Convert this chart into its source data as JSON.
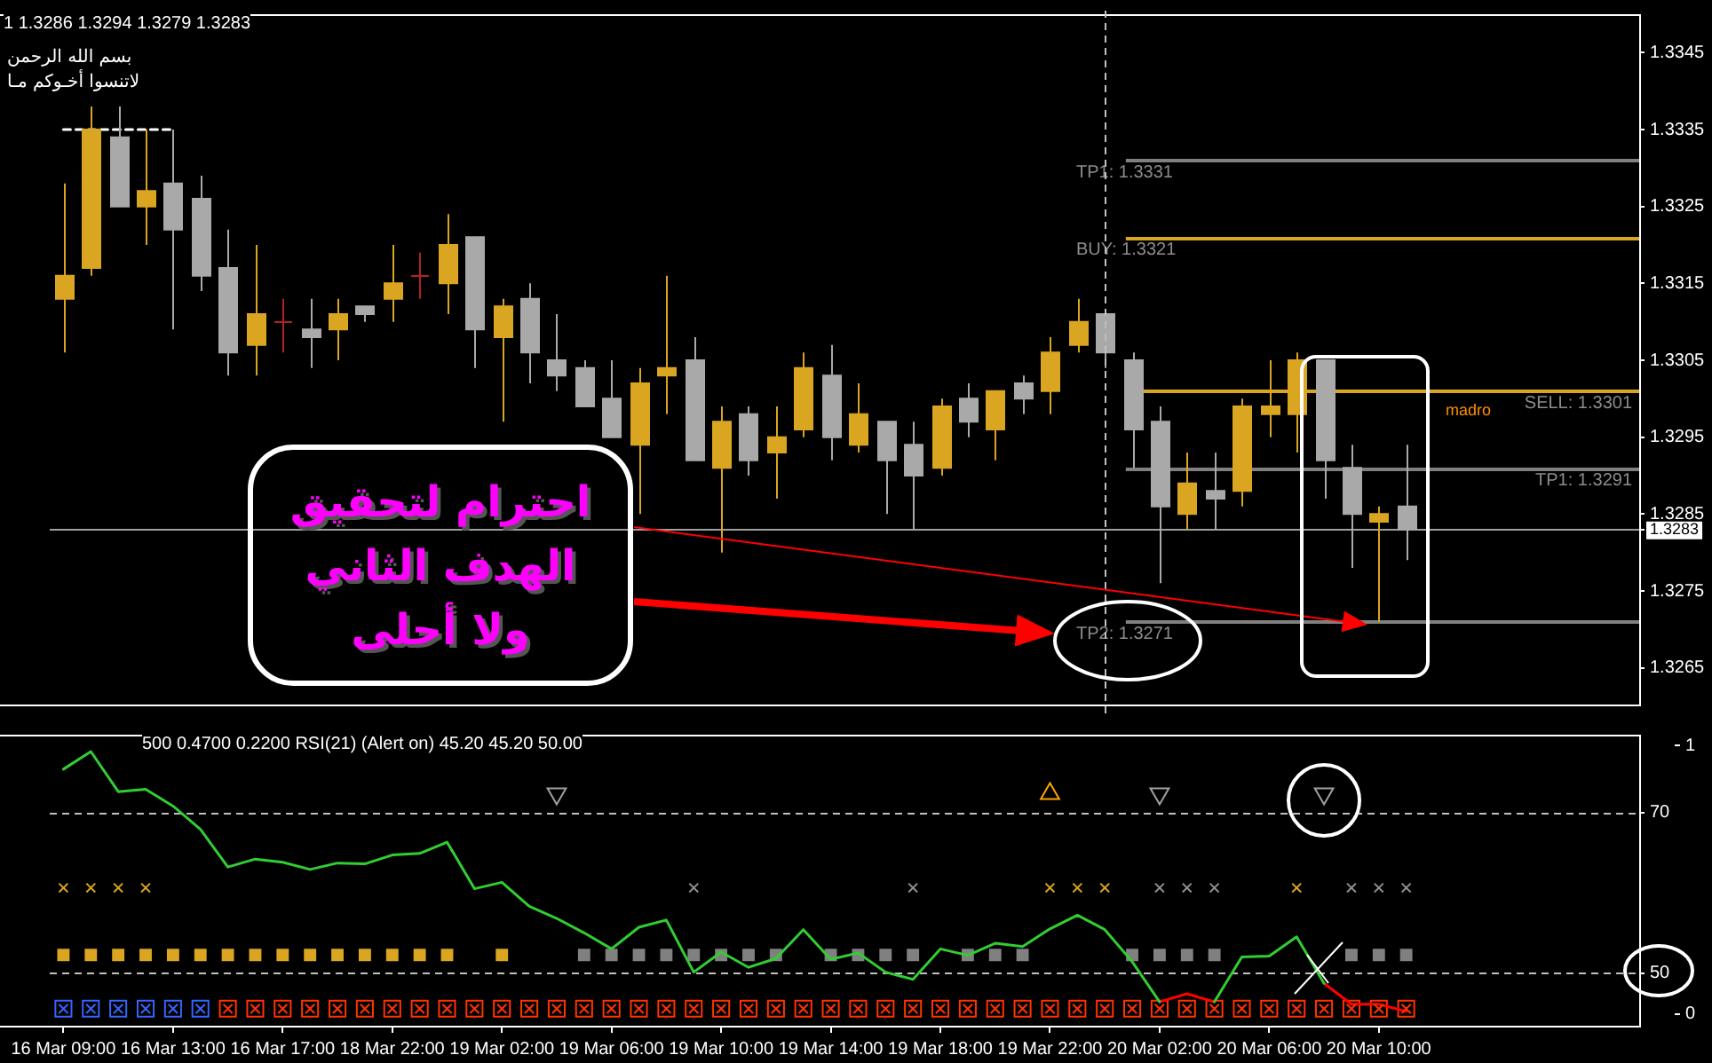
{
  "chart_data": [
    {
      "type": "candlestick",
      "categories": [
        "16 Mar 09:00",
        null,
        null,
        null,
        "16 Mar 13:00",
        null,
        null,
        null,
        "16 Mar 17:00",
        null,
        null,
        null,
        "18 Mar 22:00",
        null,
        null,
        null,
        "19 Mar 02:00",
        null,
        null,
        null,
        "19 Mar 06:00",
        null,
        null,
        null,
        "19 Mar 10:00",
        null,
        null,
        null,
        "19 Mar 14:00",
        null,
        null,
        null,
        "19 Mar 18:00",
        null,
        null,
        null,
        "19 Mar 22:00",
        null,
        null,
        null,
        "20 Mar 02:00",
        null,
        null,
        null,
        "20 Mar 06:00",
        null,
        null,
        null,
        "20 Mar 10:00",
        null,
        null,
        null,
        null,
        null,
        null,
        null,
        null,
        null
      ],
      "ohlc": [
        [
          1.3313,
          1.3328,
          1.3306,
          1.3316
        ],
        [
          1.3317,
          1.3338,
          1.3316,
          1.3335
        ],
        [
          1.3334,
          1.3338,
          1.3325,
          1.3325
        ],
        [
          1.3325,
          1.3335,
          1.332,
          1.3327
        ],
        [
          1.3328,
          1.3335,
          1.3309,
          1.3322
        ],
        [
          1.3326,
          1.3329,
          1.3314,
          1.3316
        ],
        [
          1.3317,
          1.3322,
          1.3303,
          1.3306
        ],
        [
          1.3307,
          1.332,
          1.3303,
          1.3311
        ],
        [
          1.331,
          1.3313,
          1.3306,
          1.331
        ],
        [
          1.3309,
          1.3313,
          1.3304,
          1.3308
        ],
        [
          1.3309,
          1.3313,
          1.3305,
          1.3311
        ],
        [
          1.3312,
          1.3312,
          1.331,
          1.3311
        ],
        [
          1.3313,
          1.332,
          1.331,
          1.3315
        ],
        [
          1.3316,
          1.3319,
          1.3313,
          1.3316
        ],
        [
          1.3315,
          1.3324,
          1.3311,
          1.332
        ],
        [
          1.3321,
          1.3321,
          1.3304,
          1.3309
        ],
        [
          1.3308,
          1.3313,
          1.3297,
          1.3312
        ],
        [
          1.3313,
          1.3315,
          1.3302,
          1.3306
        ],
        [
          1.3305,
          1.3311,
          1.3301,
          1.3303
        ],
        [
          1.3304,
          1.3305,
          1.3299,
          1.3299
        ],
        [
          1.33,
          1.3305,
          1.3295,
          1.3295
        ],
        [
          1.3294,
          1.3304,
          1.3285,
          1.3302
        ],
        [
          1.3303,
          1.3316,
          1.3298,
          1.3304
        ],
        [
          1.3305,
          1.3308,
          1.3292,
          1.3292
        ],
        [
          1.3291,
          1.3299,
          1.328,
          1.3297
        ],
        [
          1.3298,
          1.3299,
          1.329,
          1.3292
        ],
        [
          1.3293,
          1.3299,
          1.3287,
          1.3295
        ],
        [
          1.3296,
          1.3306,
          1.3295,
          1.3304
        ],
        [
          1.3303,
          1.3307,
          1.3292,
          1.3295
        ],
        [
          1.3294,
          1.3302,
          1.3293,
          1.3298
        ],
        [
          1.3297,
          1.3297,
          1.3285,
          1.3292
        ],
        [
          1.3294,
          1.3297,
          1.3283,
          1.329
        ],
        [
          1.3291,
          1.33,
          1.329,
          1.3299
        ],
        [
          1.33,
          1.3302,
          1.3295,
          1.3297
        ],
        [
          1.3296,
          1.3301,
          1.3292,
          1.3301
        ],
        [
          1.3302,
          1.3303,
          1.3298,
          1.33
        ],
        [
          1.3301,
          1.3308,
          1.3298,
          1.3306
        ],
        [
          1.3307,
          1.3313,
          1.3306,
          1.331
        ],
        [
          1.3311,
          1.3311,
          1.3304,
          1.3306
        ],
        [
          1.3305,
          1.3306,
          1.3291,
          1.3296
        ],
        [
          1.3297,
          1.3299,
          1.3276,
          1.3286
        ],
        [
          1.3285,
          1.3293,
          1.3283,
          1.3289
        ],
        [
          1.3288,
          1.3293,
          1.3283,
          1.3287
        ],
        [
          1.3288,
          1.33,
          1.3286,
          1.3299
        ],
        [
          1.3298,
          1.3305,
          1.3295,
          1.3299
        ],
        [
          1.3298,
          1.3306,
          1.3293,
          1.3305
        ],
        [
          1.3305,
          1.3305,
          1.3287,
          1.3292
        ],
        [
          1.3291,
          1.3294,
          1.3278,
          1.3285
        ],
        [
          1.3284,
          1.3286,
          1.3271,
          1.3285
        ],
        [
          1.3286,
          1.3294,
          1.3279,
          1.3283
        ],
        null,
        null,
        null,
        null,
        null,
        null,
        null,
        null
      ],
      "colors": [
        "#daa520",
        "#daa520",
        "#a9a9a9",
        "#daa520",
        "#a9a9a9",
        "#a9a9a9",
        "#a9a9a9",
        "#daa520",
        "#b22222",
        "#a9a9a9",
        "#daa520",
        "#a9a9a9",
        "#daa520",
        "#b22222",
        "#daa520",
        "#a9a9a9",
        "#daa520",
        "#a9a9a9",
        "#a9a9a9",
        "#a9a9a9",
        "#a9a9a9",
        "#daa520",
        "#daa520",
        "#a9a9a9",
        "#daa520",
        "#a9a9a9",
        "#daa520",
        "#daa520",
        "#a9a9a9",
        "#daa520",
        "#a9a9a9",
        "#a9a9a9",
        "#daa520",
        "#a9a9a9",
        "#daa520",
        "#a9a9a9",
        "#daa520",
        "#daa520",
        "#a9a9a9",
        "#a9a9a9",
        "#a9a9a9",
        "#daa520",
        "#a9a9a9",
        "#daa520",
        "#daa520",
        "#daa520",
        "#a9a9a9",
        "#a9a9a9",
        "#daa520",
        "#a9a9a9",
        null,
        null,
        null,
        null,
        null,
        null,
        null,
        null
      ],
      "series": [
        {
          "type": "line",
          "values": [
            1.3335,
            1.3335,
            1.3335,
            1.3335,
            1.3335,
            null,
            null,
            null,
            null,
            null,
            null,
            null,
            null,
            null,
            null,
            null,
            null,
            null,
            null,
            null,
            null,
            null,
            null,
            null,
            null,
            null,
            null,
            null,
            null,
            null,
            null,
            null,
            null,
            null,
            null,
            null,
            null,
            null,
            null,
            null,
            null,
            null,
            null,
            null,
            null,
            null,
            null,
            null,
            null,
            null,
            null,
            null,
            null,
            null,
            null,
            null,
            null,
            null
          ],
          "color": "#ffffff",
          "line_style": "dashed"
        }
      ],
      "ylim": [
        1.326,
        1.335
      ],
      "yticks": [
        1.3265,
        1.3275,
        1.3283,
        1.3285,
        1.3295,
        1.3305,
        1.3315,
        1.3325,
        1.3335,
        1.3345
      ],
      "tick_labels": "y",
      "ref_lines": [
        {
          "axis": "y",
          "value": 1.3331,
          "label": "TP1: 1.3331",
          "color": "#808080"
        },
        {
          "axis": "y",
          "value": 1.3321,
          "label": "BUY: 1.3321",
          "color": "#daa520"
        },
        {
          "axis": "y",
          "value": 1.3301,
          "label": "SELL: 1.3301",
          "color": "#daa520"
        },
        {
          "axis": "y",
          "value": 1.3291,
          "label": "TP1: 1.3291",
          "color": "#808080"
        },
        {
          "axis": "y",
          "value": 1.3271,
          "label": "TP2: 1.3271",
          "color": "#808080"
        },
        {
          "axis": "y",
          "value": 1.3283,
          "color": "#a0a0a0"
        }
      ],
      "annotations": [
        "1 1.3286 1.3294 1.3279 1.3283",
        "بسم الله الرحمن",
        "لاتنسوا أخـوكم مـا",
        "madro",
        "احترام لتحقيق\nالهدف الثاني\nولا أحلى"
      ]
    },
    {
      "type": "line",
      "title": "500 0.4700 0.2200 RSI(21) (Alert on) 45.20 45.20 50.00",
      "categories": [
        "16 Mar 09:00",
        null,
        null,
        null,
        "16 Mar 13:00",
        null,
        null,
        null,
        "16 Mar 17:00",
        null,
        null,
        null,
        "18 Mar 22:00",
        null,
        null,
        null,
        "19 Mar 02:00",
        null,
        null,
        null,
        "19 Mar 06:00",
        null,
        null,
        null,
        "19 Mar 10:00",
        null,
        null,
        null,
        "19 Mar 14:00",
        null,
        null,
        null,
        "19 Mar 18:00",
        null,
        null,
        null,
        "19 Mar 22:00",
        null,
        null,
        null,
        "20 Mar 02:00",
        null,
        null,
        null,
        "20 Mar 06:00",
        null,
        null,
        null,
        "20 Mar 10:00",
        null,
        null,
        null,
        null,
        null,
        null,
        null,
        null,
        null
      ],
      "ylim": [
        43.2,
        79.7
      ],
      "yticks": [
        70,
        50
      ],
      "y2lim": [
        -0.05,
        1.04
      ],
      "y2ticks": [
        1,
        0
      ],
      "ref_lines": [
        {
          "axis": "y",
          "value": 70,
          "color": "#c0c0c0",
          "line_style": "dashed"
        },
        {
          "axis": "y",
          "value": 50,
          "color": "#c0c0c0",
          "line_style": "dashed"
        }
      ],
      "series": [
        {
          "color": "#32cd32",
          "values": [
            75.4,
            77.6,
            72.6,
            72.9,
            70.8,
            67.9,
            63.2,
            64.2,
            63.8,
            62.9,
            63.7,
            63.6,
            64.7,
            64.9,
            66.3,
            60.5,
            61.3,
            58.3,
            56.8,
            55.0,
            53.0,
            55.7,
            56.6,
            50.1,
            52.6,
            50.7,
            51.8,
            55.4,
            51.7,
            52.5,
            50.1,
            49.2,
            53.0,
            52.2,
            53.7,
            53.3,
            55.5,
            57.2,
            55.4,
            51.4,
            46.4,
            null,
            46.4,
            52.0,
            52.1,
            54.5,
            48.7,
            null,
            null,
            null,
            null,
            null,
            null,
            null,
            null,
            null,
            null,
            null
          ]
        },
        {
          "color": "#ff0000",
          "values": [
            null,
            null,
            null,
            null,
            null,
            null,
            null,
            null,
            null,
            null,
            null,
            null,
            null,
            null,
            null,
            null,
            null,
            null,
            null,
            null,
            null,
            null,
            null,
            null,
            null,
            null,
            null,
            null,
            null,
            null,
            null,
            null,
            null,
            null,
            null,
            null,
            null,
            null,
            null,
            null,
            46.4,
            47.4,
            46.4,
            null,
            null,
            null,
            48.7,
            46.1,
            46.1,
            45.2,
            null,
            null,
            null,
            null,
            null,
            null,
            null,
            null
          ]
        },
        {
          "type": "scatter",
          "axis": "y2",
          "marker": "square",
          "color": "#daa520",
          "values": [
            0.22,
            0.22,
            0.22,
            0.22,
            0.22,
            0.22,
            0.22,
            0.22,
            0.22,
            0.22,
            0.22,
            0.22,
            0.22,
            0.22,
            0.22,
            null,
            0.22,
            null,
            null,
            null,
            null,
            null,
            null,
            null,
            null,
            null,
            null,
            null,
            null,
            null,
            null,
            null,
            null,
            null,
            null,
            null,
            null,
            null,
            null,
            null,
            null,
            null,
            null,
            null,
            null,
            null,
            null,
            null,
            null,
            null,
            null,
            null,
            null,
            null,
            null,
            null,
            null,
            null
          ]
        },
        {
          "type": "scatter",
          "axis": "y2",
          "marker": "square",
          "color": "#808080",
          "values": [
            null,
            null,
            null,
            null,
            null,
            null,
            null,
            null,
            null,
            null,
            null,
            null,
            null,
            null,
            null,
            null,
            null,
            null,
            null,
            0.22,
            0.22,
            0.22,
            0.22,
            0.22,
            0.22,
            0.22,
            0.22,
            null,
            0.22,
            0.22,
            0.22,
            0.22,
            null,
            0.22,
            0.22,
            0.22,
            null,
            null,
            null,
            0.22,
            0.22,
            0.22,
            0.22,
            null,
            null,
            null,
            null,
            0.22,
            0.22,
            0.22,
            null,
            null,
            null,
            null,
            null,
            null,
            null,
            null
          ]
        },
        {
          "type": "scatter",
          "axis": "y2",
          "marker": "cross",
          "color": "#daa520",
          "values": [
            0.47,
            0.47,
            0.47,
            0.47,
            null,
            null,
            null,
            null,
            null,
            null,
            null,
            null,
            null,
            null,
            null,
            null,
            null,
            null,
            null,
            null,
            null,
            null,
            null,
            null,
            null,
            null,
            null,
            null,
            null,
            null,
            null,
            null,
            null,
            null,
            null,
            null,
            0.47,
            0.47,
            0.47,
            null,
            null,
            null,
            null,
            null,
            null,
            0.47,
            null,
            null,
            null,
            null,
            null,
            null,
            null,
            null,
            null,
            null,
            null,
            null
          ]
        },
        {
          "type": "scatter",
          "axis": "y2",
          "marker": "cross",
          "color": "#909090",
          "values": [
            null,
            null,
            null,
            null,
            null,
            null,
            null,
            null,
            null,
            null,
            null,
            null,
            null,
            null,
            null,
            null,
            null,
            null,
            null,
            null,
            null,
            null,
            null,
            0.47,
            null,
            null,
            null,
            null,
            null,
            null,
            null,
            0.47,
            null,
            null,
            null,
            null,
            null,
            null,
            null,
            null,
            0.47,
            0.47,
            0.47,
            null,
            null,
            null,
            null,
            0.47,
            0.47,
            0.47,
            null,
            null,
            null,
            null,
            null,
            null,
            null,
            null
          ]
        },
        {
          "type": "scatter",
          "axis": "y2",
          "marker": "square-cross",
          "color": "#3366ff",
          "values": [
            0.02,
            0.02,
            0.02,
            0.02,
            0.02,
            0.02,
            null,
            null,
            null,
            null,
            null,
            null,
            null,
            null,
            null,
            null,
            null,
            null,
            null,
            null,
            null,
            null,
            null,
            null,
            null,
            null,
            null,
            null,
            null,
            null,
            null,
            null,
            null,
            null,
            null,
            null,
            null,
            null,
            null,
            null,
            null,
            null,
            null,
            null,
            null,
            null,
            null,
            null,
            null,
            null,
            null,
            null,
            null,
            null,
            null,
            null,
            null,
            null
          ]
        },
        {
          "type": "scatter",
          "axis": "y2",
          "marker": "square-cross",
          "color": "#ff3300",
          "values": [
            null,
            null,
            null,
            null,
            null,
            null,
            0.02,
            0.02,
            0.02,
            0.02,
            0.02,
            0.02,
            0.02,
            0.02,
            0.02,
            0.02,
            0.02,
            0.02,
            0.02,
            0.02,
            0.02,
            0.02,
            0.02,
            0.02,
            0.02,
            0.02,
            0.02,
            0.02,
            0.02,
            0.02,
            0.02,
            0.02,
            0.02,
            0.02,
            0.02,
            0.02,
            0.02,
            0.02,
            0.02,
            0.02,
            0.02,
            0.02,
            0.02,
            0.02,
            0.02,
            0.02,
            0.02,
            0.02,
            0.02,
            0.02,
            null,
            null,
            null,
            null,
            null,
            null,
            null,
            null
          ]
        },
        {
          "type": "scatter",
          "axis": "y2",
          "marker": "triangle-down",
          "color": "#a0a0a0",
          "values": [
            null,
            null,
            null,
            null,
            null,
            null,
            null,
            null,
            null,
            null,
            null,
            null,
            null,
            null,
            null,
            null,
            null,
            null,
            0.82,
            null,
            null,
            null,
            null,
            null,
            null,
            null,
            null,
            null,
            null,
            null,
            null,
            null,
            null,
            null,
            null,
            null,
            null,
            null,
            null,
            null,
            0.82,
            null,
            null,
            null,
            null,
            null,
            0.82,
            null,
            null,
            null,
            null,
            null,
            null,
            null,
            null,
            null,
            null,
            null
          ]
        },
        {
          "type": "scatter",
          "axis": "y2",
          "marker": "triangle",
          "color": "#ffa500",
          "values": [
            null,
            null,
            null,
            null,
            null,
            null,
            null,
            null,
            null,
            null,
            null,
            null,
            null,
            null,
            null,
            null,
            null,
            null,
            null,
            null,
            null,
            null,
            null,
            null,
            null,
            null,
            null,
            null,
            null,
            null,
            null,
            null,
            null,
            null,
            null,
            null,
            0.82,
            null,
            null,
            null,
            null,
            null,
            null,
            null,
            null,
            null,
            null,
            null,
            null,
            null,
            null,
            null,
            null,
            null,
            null,
            null,
            null,
            null
          ]
        }
      ]
    }
  ]
}
